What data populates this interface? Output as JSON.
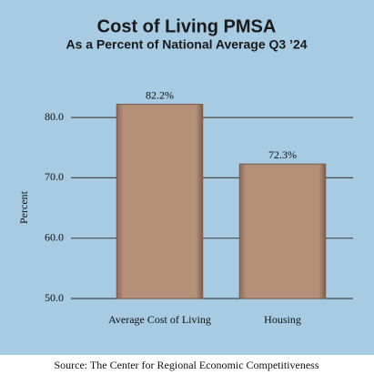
{
  "chart_data": {
    "type": "bar",
    "title": "Cost of Living PMSA",
    "subtitle": "As a Percent of National Average Q3 ’24",
    "y_label": "Percent",
    "categories": [
      "Average Cost of Living",
      "Housing"
    ],
    "values": [
      82.2,
      72.3
    ],
    "value_labels": [
      "82.2%",
      "72.3%"
    ],
    "color": "#b59079",
    "ylim": [
      50,
      84
    ],
    "yticks": [
      {
        "value": 50,
        "label": "50.0"
      },
      {
        "value": 60,
        "label": "60.0"
      },
      {
        "value": 70,
        "label": "70.0"
      },
      {
        "value": 80,
        "label": "80.0"
      }
    ],
    "grid": true,
    "source": "Source: The Center for Regional Economic Competitiveness"
  }
}
